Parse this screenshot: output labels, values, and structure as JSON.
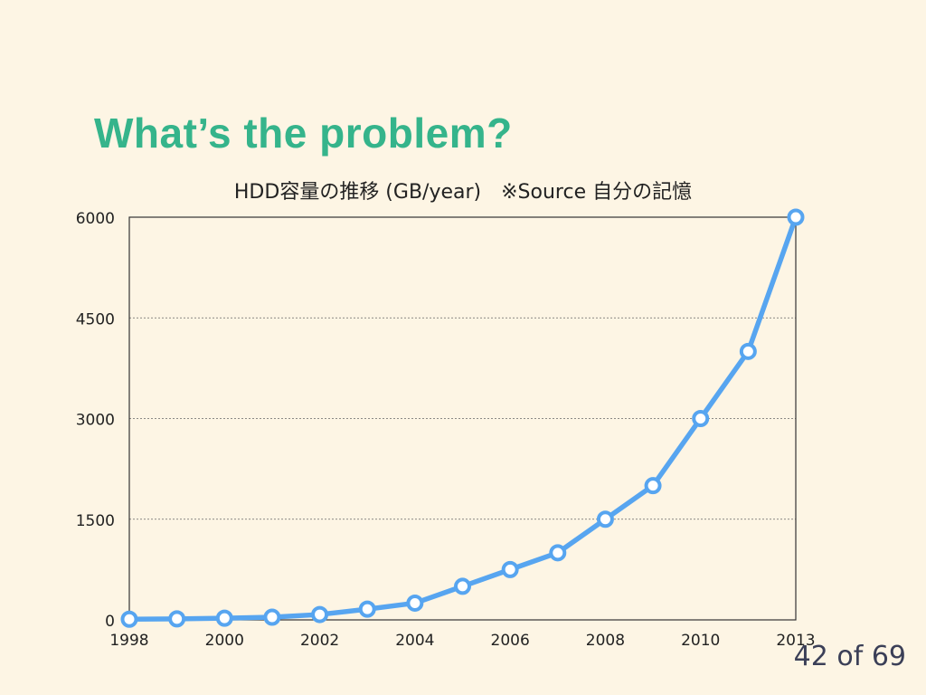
{
  "slide": {
    "title": "What’s the problem?",
    "page_number": "42 of 69"
  },
  "colors": {
    "title": "#35b48b",
    "series": "#57a5f0",
    "background": "#fdf5e4"
  },
  "chart_data": {
    "type": "line",
    "title": "HDD容量の推移 (GB/year)　※Source 自分の記憶",
    "xlabel": "",
    "ylabel": "",
    "x": [
      1998,
      1999,
      2000,
      2001,
      2002,
      2003,
      2004,
      2005,
      2006,
      2007,
      2008,
      2009,
      2010,
      2011,
      2013
    ],
    "x_tick_labels": [
      "1998",
      "2000",
      "2002",
      "2004",
      "2006",
      "2008",
      "2010",
      "2013"
    ],
    "y_ticks": [
      0,
      1500,
      3000,
      4500,
      6000
    ],
    "ylim": [
      0,
      6000
    ],
    "grid": "horizontal dotted",
    "series": [
      {
        "values": [
          10,
          15,
          25,
          40,
          80,
          160,
          250,
          500,
          750,
          1000,
          1500,
          2000,
          3000,
          4000,
          6000
        ]
      }
    ]
  }
}
